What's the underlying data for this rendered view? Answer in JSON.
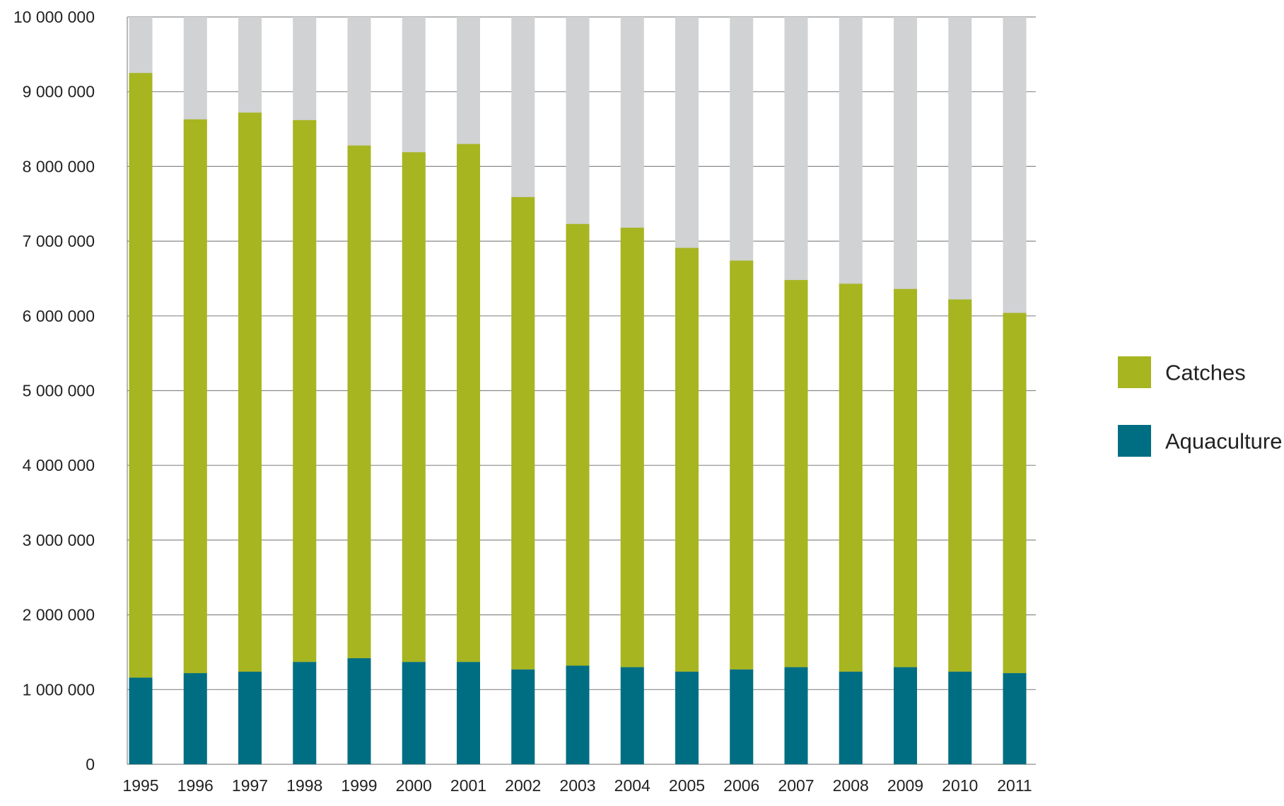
{
  "chart_data": {
    "type": "bar",
    "stacked": true,
    "title": "",
    "xlabel": "",
    "ylabel": "",
    "ylim": [
      0,
      10000000
    ],
    "yticks": [
      0,
      1000000,
      2000000,
      3000000,
      4000000,
      5000000,
      6000000,
      7000000,
      8000000,
      9000000,
      10000000
    ],
    "ytick_labels": [
      "0",
      "1 000 000",
      "2 000 000",
      "3 000 000",
      "4 000 000",
      "5 000 000",
      "6 000 000",
      "7 000 000",
      "8 000 000",
      "9 000 000",
      "10 000 000"
    ],
    "grid": "horizontal",
    "legend_position": "right",
    "background_bar_color": "#d0d2d3",
    "categories": [
      "1995",
      "1996",
      "1997",
      "1998",
      "1999",
      "2000",
      "2001",
      "2002",
      "2003",
      "2004",
      "2005",
      "2006",
      "2007",
      "2008",
      "2009",
      "2010",
      "2011"
    ],
    "series": [
      {
        "name": "Aquaculture",
        "color": "#006e82",
        "values": [
          1160000,
          1220000,
          1240000,
          1370000,
          1420000,
          1370000,
          1370000,
          1270000,
          1320000,
          1300000,
          1240000,
          1270000,
          1300000,
          1240000,
          1300000,
          1240000,
          1220000
        ]
      },
      {
        "name": "Catches",
        "color": "#a7b520",
        "values": [
          8090000,
          7410000,
          7480000,
          7250000,
          6860000,
          6820000,
          6930000,
          6320000,
          5910000,
          5880000,
          5670000,
          5470000,
          5180000,
          5190000,
          5060000,
          4980000,
          4820000
        ]
      }
    ],
    "legend": [
      {
        "label": "Catches",
        "color": "#a7b520"
      },
      {
        "label": "Aquaculture",
        "color": "#006e82"
      }
    ]
  }
}
